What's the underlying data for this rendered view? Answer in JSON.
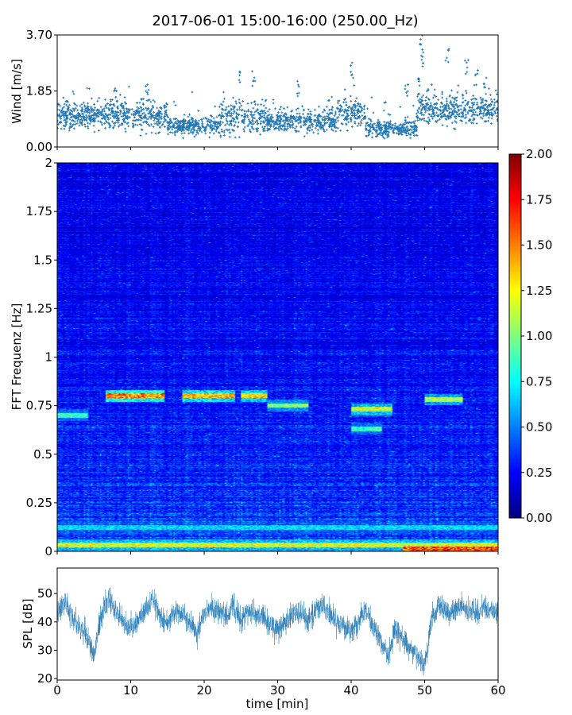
{
  "title": "2017-06-01 15:00-16:00 (250.00_Hz)",
  "colors": {
    "series": "#1f77b4",
    "colormap": [
      "#00007f",
      "#0000ff",
      "#007fff",
      "#00ffff",
      "#7fff7f",
      "#ffff00",
      "#ff7f00",
      "#ff0000",
      "#7f0000"
    ]
  },
  "chart_data": [
    {
      "type": "scatter",
      "name": "wind",
      "ylabel": "Wind [m/s]",
      "xlabel": "",
      "xlim": [
        0,
        60
      ],
      "ylim": [
        0,
        3.7
      ],
      "yticks": [
        "0.00",
        "1.85",
        "3.70"
      ],
      "xticks": [
        0,
        10,
        20,
        30,
        40,
        50,
        60
      ],
      "marker": "+",
      "approx_points_per_minute": 40,
      "segments": [
        {
          "t": [
            0,
            5
          ],
          "mean": 1.0,
          "spread": 0.5
        },
        {
          "t": [
            5,
            15
          ],
          "mean": 1.05,
          "spread": 0.6
        },
        {
          "t": [
            15,
            22
          ],
          "mean": 0.7,
          "spread": 0.35
        },
        {
          "t": [
            22,
            28
          ],
          "mean": 0.95,
          "spread": 0.7
        },
        {
          "t": [
            28,
            38
          ],
          "mean": 0.85,
          "spread": 0.5
        },
        {
          "t": [
            38,
            42
          ],
          "mean": 1.1,
          "spread": 0.6
        },
        {
          "t": [
            42,
            49
          ],
          "mean": 0.6,
          "spread": 0.35
        },
        {
          "t": [
            49,
            60
          ],
          "mean": 1.25,
          "spread": 0.6
        }
      ],
      "peaks": [
        [
          1.2,
          1.7
        ],
        [
          8,
          1.9
        ],
        [
          12.3,
          2.1
        ],
        [
          24.9,
          2.5
        ],
        [
          26.7,
          2.5
        ],
        [
          32.8,
          2.2
        ],
        [
          40.1,
          2.8
        ],
        [
          47.5,
          2.2
        ],
        [
          49.3,
          2.3
        ],
        [
          49.6,
          3.7
        ],
        [
          49.7,
          3.2
        ],
        [
          53.1,
          3.3
        ],
        [
          55.7,
          2.9
        ],
        [
          57,
          2.6
        ],
        [
          58.2,
          2.3
        ]
      ]
    },
    {
      "type": "heatmap",
      "name": "spectrogram",
      "ylabel": "FFT Frequenz [Hz]",
      "xlabel": "",
      "xlim": [
        0,
        60
      ],
      "ylim": [
        0,
        2
      ],
      "yticks": [
        "0",
        "0.25",
        "0.5",
        "0.75",
        "1",
        "1.25",
        "1.5",
        "1.75",
        "2"
      ],
      "xticks": [
        0,
        10,
        20,
        30,
        40,
        50,
        60
      ],
      "colorbar": {
        "range": [
          0,
          2
        ],
        "ticks": [
          "0.00",
          "0.25",
          "0.50",
          "0.75",
          "1.00",
          "1.25",
          "1.50",
          "1.75",
          "2.00"
        ],
        "colormap": "jet"
      },
      "bands": [
        {
          "freq": 0.8,
          "t": [
            6.5,
            14.5
          ],
          "level": 1.65
        },
        {
          "freq": 0.8,
          "t": [
            17,
            24
          ],
          "level": 1.5
        },
        {
          "freq": 0.8,
          "t": [
            25,
            28.5
          ],
          "level": 1.45
        },
        {
          "freq": 0.75,
          "t": [
            28.5,
            34
          ],
          "level": 1.1
        },
        {
          "freq": 0.73,
          "t": [
            40,
            45.5
          ],
          "level": 1.3
        },
        {
          "freq": 0.78,
          "t": [
            50,
            55
          ],
          "level": 1.2
        },
        {
          "freq": 0.7,
          "t": [
            0,
            4
          ],
          "level": 0.95
        },
        {
          "freq": 0.63,
          "t": [
            40,
            44
          ],
          "level": 0.95
        },
        {
          "freq": 0.12,
          "t": [
            0,
            60
          ],
          "level": 0.75
        },
        {
          "freq": 0.03,
          "t": [
            0,
            60
          ],
          "level": 1.3
        },
        {
          "freq": 0.01,
          "t": [
            47,
            60
          ],
          "level": 1.8
        }
      ]
    },
    {
      "type": "line",
      "name": "spl",
      "ylabel": "SPL [dB]",
      "xlabel": "time [min]",
      "xlim": [
        0,
        60
      ],
      "ylim": [
        19.5,
        59
      ],
      "yticks": [
        20,
        30,
        40,
        50
      ],
      "xticks": [
        0,
        10,
        20,
        30,
        40,
        50,
        60
      ],
      "trend": [
        [
          0,
          43
        ],
        [
          1,
          47
        ],
        [
          2,
          42
        ],
        [
          3,
          38
        ],
        [
          4,
          36
        ],
        [
          5,
          28
        ],
        [
          6,
          42
        ],
        [
          7,
          49
        ],
        [
          8,
          44
        ],
        [
          9,
          40
        ],
        [
          10,
          38
        ],
        [
          11,
          40
        ],
        [
          12,
          45
        ],
        [
          13,
          48
        ],
        [
          14,
          42
        ],
        [
          15,
          39
        ],
        [
          16,
          44
        ],
        [
          17,
          42
        ],
        [
          18,
          40
        ],
        [
          19,
          36
        ],
        [
          20,
          43
        ],
        [
          21,
          45
        ],
        [
          22,
          44
        ],
        [
          23,
          42
        ],
        [
          24,
          45
        ],
        [
          25,
          41
        ],
        [
          26,
          44
        ],
        [
          27,
          43
        ],
        [
          28,
          42
        ],
        [
          29,
          39
        ],
        [
          30,
          36
        ],
        [
          31,
          40
        ],
        [
          32,
          42
        ],
        [
          33,
          44
        ],
        [
          34,
          40
        ],
        [
          35,
          43
        ],
        [
          36,
          47
        ],
        [
          37,
          43
        ],
        [
          38,
          40
        ],
        [
          39,
          38
        ],
        [
          40,
          37
        ],
        [
          41,
          40
        ],
        [
          42,
          45
        ],
        [
          43,
          38
        ],
        [
          44,
          34
        ],
        [
          45,
          28
        ],
        [
          46,
          38
        ],
        [
          47,
          34
        ],
        [
          48,
          31
        ],
        [
          49,
          28
        ],
        [
          50,
          25
        ],
        [
          51,
          42
        ],
        [
          52,
          46
        ],
        [
          53,
          43
        ],
        [
          54,
          44
        ],
        [
          55,
          46
        ],
        [
          56,
          44
        ],
        [
          57,
          43
        ],
        [
          58,
          45
        ],
        [
          59,
          43
        ],
        [
          60,
          44
        ]
      ],
      "noise": 4
    }
  ]
}
